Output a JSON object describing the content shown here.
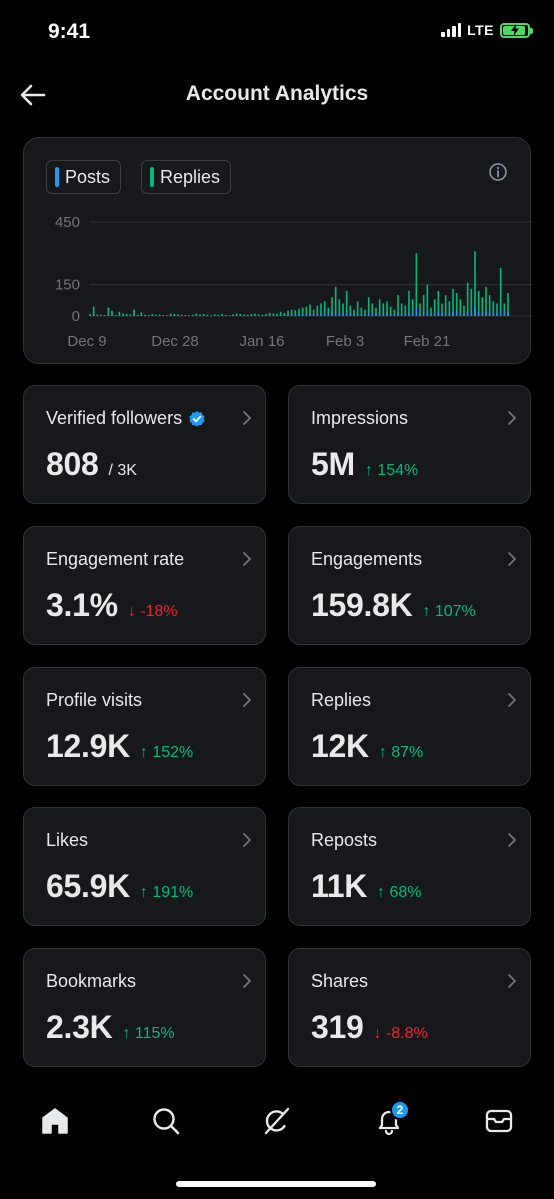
{
  "status_bar": {
    "time": "9:41",
    "network": "LTE"
  },
  "header": {
    "title": "Account Analytics"
  },
  "chart": {
    "legend": [
      {
        "label": "Posts",
        "color": "#1d9bf0"
      },
      {
        "label": "Replies",
        "color": "#00ba7c"
      }
    ]
  },
  "chart_data": {
    "type": "bar",
    "x_tick_labels": [
      "Dec 9",
      "Dec 28",
      "Jan 16",
      "Feb 3",
      "Feb 21"
    ],
    "y_tick_labels": [
      "450",
      "150",
      "0"
    ],
    "y_ticks": [
      450,
      150,
      0
    ],
    "ylim": [
      0,
      450
    ],
    "grid": true,
    "series": [
      {
        "name": "Posts",
        "color": "#1d9bf0",
        "values": [
          10,
          45,
          8,
          6,
          5,
          40,
          25,
          5,
          20,
          12,
          10,
          8,
          30,
          5,
          18,
          6,
          4,
          10,
          6,
          8,
          5,
          4,
          12,
          10,
          8,
          6,
          5,
          4,
          6,
          12,
          8,
          10,
          6,
          4,
          8,
          6,
          10,
          5,
          4,
          8,
          12,
          10,
          8,
          6,
          10,
          12,
          8,
          6,
          10,
          15,
          12,
          10,
          20,
          15,
          25,
          30,
          28,
          35,
          40,
          45,
          55,
          30,
          50,
          60,
          70,
          40,
          90,
          140,
          80,
          60,
          120,
          50,
          30,
          70,
          40,
          30,
          90,
          60,
          40,
          80,
          60,
          70,
          45,
          30,
          100,
          60,
          50,
          120,
          80,
          300,
          60,
          100,
          150,
          40,
          80,
          120,
          60,
          100,
          70,
          130,
          110,
          80,
          50,
          160,
          130,
          310,
          120,
          90,
          140,
          100,
          70,
          60,
          230,
          60,
          110
        ]
      },
      {
        "name": "Replies",
        "color": "#00ba7c",
        "values": [
          3,
          5,
          3,
          2,
          3,
          6,
          4,
          2,
          3,
          3,
          2,
          2,
          4,
          2,
          3,
          2,
          1,
          2,
          2,
          2,
          2,
          1,
          3,
          2,
          2,
          2,
          1,
          1,
          2,
          3,
          2,
          3,
          2,
          1,
          2,
          2,
          3,
          2,
          1,
          2,
          3,
          3,
          2,
          2,
          3,
          3,
          2,
          2,
          3,
          4,
          3,
          3,
          5,
          4,
          6,
          7,
          6,
          8,
          9,
          10,
          12,
          7,
          11,
          13,
          15,
          9,
          18,
          25,
          16,
          13,
          22,
          11,
          7,
          14,
          9,
          7,
          17,
          12,
          9,
          15,
          12,
          14,
          10,
          7,
          18,
          12,
          11,
          22,
          15,
          40,
          12,
          18,
          26,
          9,
          15,
          21,
          12,
          18,
          13,
          22,
          19,
          15,
          11,
          27,
          22,
          42,
          21,
          16,
          24,
          18,
          13,
          12,
          35,
          12,
          19
        ]
      }
    ]
  },
  "stats": [
    {
      "label": "Verified followers",
      "value": "808",
      "sub": "/ 3K",
      "delta": "",
      "direction": ""
    },
    {
      "label": "Impressions",
      "value": "5M",
      "sub": "",
      "delta": "↑ 154%",
      "direction": "up"
    },
    {
      "label": "Engagement rate",
      "value": "3.1%",
      "sub": "",
      "delta": "↓ -18%",
      "direction": "down"
    },
    {
      "label": "Engagements",
      "value": "159.8K",
      "sub": "",
      "delta": "↑ 107%",
      "direction": "up"
    },
    {
      "label": "Profile visits",
      "value": "12.9K",
      "sub": "",
      "delta": "↑ 152%",
      "direction": "up"
    },
    {
      "label": "Replies",
      "value": "12K",
      "sub": "",
      "delta": "↑ 87%",
      "direction": "up"
    },
    {
      "label": "Likes",
      "value": "65.9K",
      "sub": "",
      "delta": "↑ 191%",
      "direction": "up"
    },
    {
      "label": "Reposts",
      "value": "11K",
      "sub": "",
      "delta": "↑ 68%",
      "direction": "up"
    },
    {
      "label": "Bookmarks",
      "value": "2.3K",
      "sub": "",
      "delta": "↑ 115%",
      "direction": "up"
    },
    {
      "label": "Shares",
      "value": "319",
      "sub": "",
      "delta": "↓ -8.8%",
      "direction": "down"
    }
  ],
  "bottom_nav": {
    "items": [
      {
        "name": "home-icon"
      },
      {
        "name": "search-icon"
      },
      {
        "name": "grok-icon"
      },
      {
        "name": "notifications-icon"
      },
      {
        "name": "messages-icon"
      }
    ],
    "notification_count": "2"
  }
}
